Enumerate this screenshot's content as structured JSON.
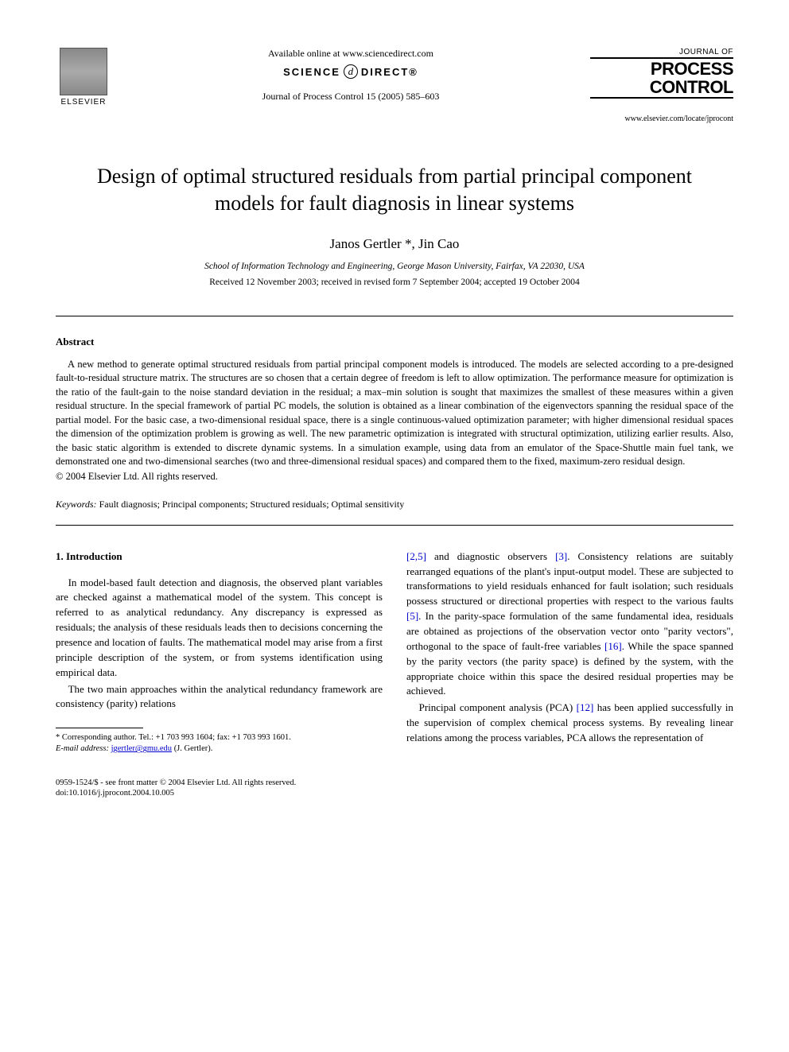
{
  "header": {
    "elsevier_label": "ELSEVIER",
    "available_online": "Available online at www.sciencedirect.com",
    "sciencedirect_left": "SCIENCE",
    "sciencedirect_right": "DIRECT®",
    "sciencedirect_d": "d",
    "journal_ref": "Journal of Process Control 15 (2005) 585–603",
    "journal_logo_top": "JOURNAL OF",
    "journal_logo_l1": "PROCESS",
    "journal_logo_l2": "CONTROL",
    "locate_url": "www.elsevier.com/locate/jprocont"
  },
  "title": "Design of optimal structured residuals from partial principal component models for fault diagnosis in linear systems",
  "authors": "Janos Gertler *, Jin Cao",
  "affiliation": "School of Information Technology and Engineering, George Mason University, Fairfax, VA 22030, USA",
  "dates": "Received 12 November 2003; received in revised form 7 September 2004; accepted 19 October 2004",
  "abstract": {
    "heading": "Abstract",
    "body": "A new method to generate optimal structured residuals from partial principal component models is introduced. The models are selected according to a pre-designed fault-to-residual structure matrix. The structures are so chosen that a certain degree of freedom is left to allow optimization. The performance measure for optimization is the ratio of the fault-gain to the noise standard deviation in the residual; a max–min solution is sought that maximizes the smallest of these measures within a given residual structure. In the special framework of partial PC models, the solution is obtained as a linear combination of the eigenvectors spanning the residual space of the partial model. For the basic case, a two-dimensional residual space, there is a single continuous-valued optimization parameter; with higher dimensional residual spaces the dimension of the optimization problem is growing as well. The new parametric optimization is integrated with structural optimization, utilizing earlier results. Also, the basic static algorithm is extended to discrete dynamic systems. In a simulation example, using data from an emulator of the Space-Shuttle main fuel tank, we demonstrated one and two-dimensional searches (two and three-dimensional residual spaces) and compared them to the fixed, maximum-zero residual design.",
    "copyright": "© 2004 Elsevier Ltd. All rights reserved."
  },
  "keywords": {
    "label": "Keywords:",
    "text": " Fault diagnosis; Principal components; Structured residuals; Optimal sensitivity"
  },
  "intro": {
    "heading": "1. Introduction",
    "p1": "In model-based fault detection and diagnosis, the observed plant variables are checked against a mathematical model of the system. This concept is referred to as analytical redundancy. Any discrepancy is expressed as residuals; the analysis of these residuals leads then to decisions concerning the presence and location of faults. The mathematical model may arise from a first principle description of the system, or from systems identification using empirical data.",
    "p2": "The two main approaches within the analytical redundancy framework are consistency (parity) relations",
    "p3_pre": "",
    "p3_ref1": "[2,5]",
    "p3_mid1": " and diagnostic observers ",
    "p3_ref2": "[3]",
    "p3_mid2": ". Consistency relations are suitably rearranged equations of the plant's input-output model. These are subjected to transformations to yield residuals enhanced for fault isolation; such residuals possess structured or directional properties with respect to the various faults ",
    "p3_ref3": "[5]",
    "p3_mid3": ". In the parity-space formulation of the same fundamental idea, residuals are obtained as projections of the observation vector onto \"parity vectors\", orthogonal to the space of fault-free variables ",
    "p3_ref4": "[16]",
    "p3_mid4": ". While the space spanned by the parity vectors (the parity space) is defined by the system, with the appropriate choice within this space the desired residual properties may be achieved.",
    "p4_pre": "Principal component analysis (PCA) ",
    "p4_ref1": "[12]",
    "p4_post": " has been applied successfully in the supervision of complex chemical process systems. By revealing linear relations among the process variables, PCA allows the representation of"
  },
  "footnote": {
    "corr": "* Corresponding author. Tel.: +1 703 993 1604; fax: +1 703 993 1601.",
    "email_label": "E-mail address:",
    "email": "jgertler@gmu.edu",
    "email_who": " (J. Gertler)."
  },
  "footer": {
    "line1": "0959-1524/$ - see front matter © 2004 Elsevier Ltd. All rights reserved.",
    "line2": "doi:10.1016/j.jprocont.2004.10.005"
  }
}
